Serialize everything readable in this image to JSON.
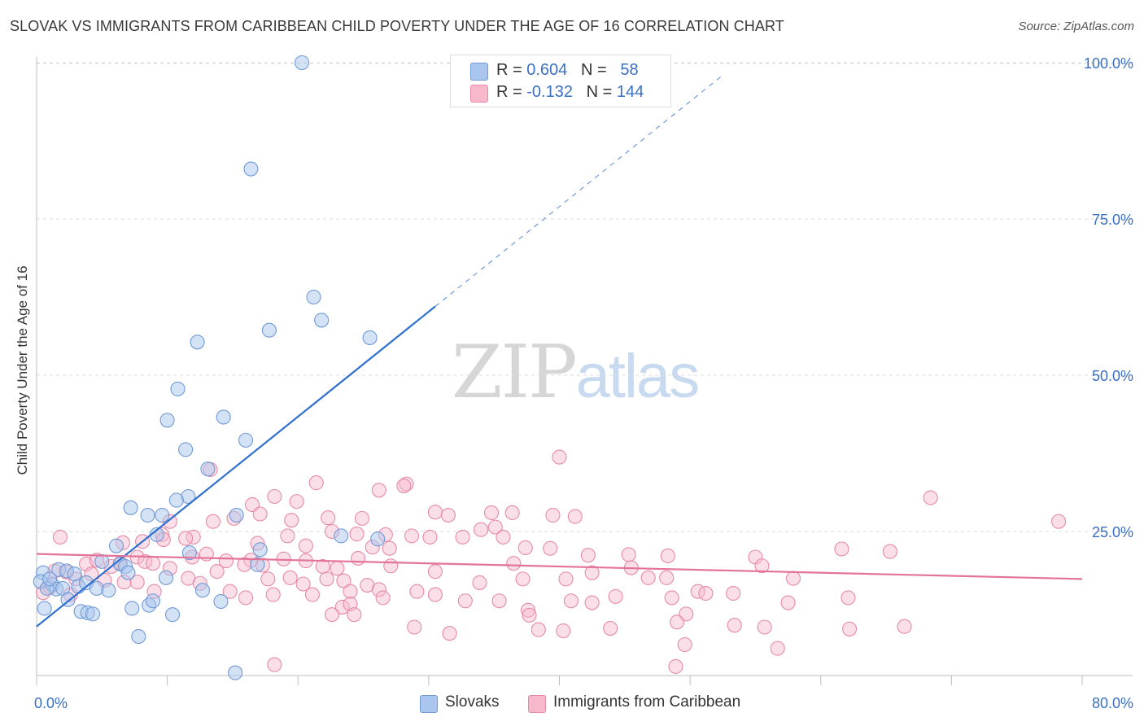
{
  "header": {
    "title": "SLOVAK VS IMMIGRANTS FROM CARIBBEAN CHILD POVERTY UNDER THE AGE OF 16 CORRELATION CHART",
    "source": "Source: ZipAtlas.com"
  },
  "watermark": {
    "zip": "ZIP",
    "atlas": "atlas"
  },
  "legend_top": {
    "rows": [
      {
        "r_label": "R = ",
        "r_value": "0.604",
        "n_label": "N = ",
        "n_value": "58",
        "color": "#aac6ee"
      },
      {
        "r_label": "R = ",
        "r_value": "-0.132",
        "n_label": "N = ",
        "n_value": "144",
        "color": "#f7b8cc"
      }
    ]
  },
  "chart_data": {
    "type": "scatter",
    "title": "SLOVAK VS IMMIGRANTS FROM CARIBBEAN CHILD POVERTY UNDER THE AGE OF 16 CORRELATION CHART",
    "xlabel": "",
    "ylabel": "Child Poverty Under the Age of 16",
    "xlim": [
      0,
      80
    ],
    "ylim": [
      0,
      105
    ],
    "x_tick_labels": [
      "0.0%",
      "80.0%"
    ],
    "y_ticks": [
      25,
      50,
      75,
      100
    ],
    "y_tick_labels": [
      "25.0%",
      "50.0%",
      "75.0%",
      "100.0%"
    ],
    "grid": true,
    "legend_position": "bottom",
    "colors": {
      "slovaks_fill": "#aac6ee",
      "slovaks_stroke": "#6f9ad6",
      "slovaks_line": "#2f6fce",
      "caribbean_fill": "#f7b8cc",
      "caribbean_stroke": "#e68aa8",
      "caribbean_line": "#e4739a",
      "axis_label": "#3a6fc4"
    },
    "series": [
      {
        "name": "Slovaks",
        "R": 0.604,
        "N": 58,
        "trend": {
          "x0": 0,
          "y0": 9.8,
          "x1": 30.5,
          "y1": 61,
          "dash_x1": 52.5,
          "dash_y1": 98
        },
        "points": [
          [
            20.3,
            100
          ],
          [
            16.4,
            83
          ],
          [
            21.2,
            62.5
          ],
          [
            21.8,
            58.8
          ],
          [
            17.8,
            57.2
          ],
          [
            25.5,
            56
          ],
          [
            12.3,
            55.3
          ],
          [
            10.8,
            47.8
          ],
          [
            10.0,
            42.8
          ],
          [
            14.3,
            43.3
          ],
          [
            16.0,
            39.6
          ],
          [
            11.4,
            38.1
          ],
          [
            13.1,
            35
          ],
          [
            11.6,
            30.6
          ],
          [
            10.7,
            30
          ],
          [
            7.2,
            28.8
          ],
          [
            8.5,
            27.6
          ],
          [
            9.6,
            27.6
          ],
          [
            15.3,
            27.6
          ],
          [
            23.3,
            24.3
          ],
          [
            26.1,
            23.8
          ],
          [
            9.2,
            24.5
          ],
          [
            6.1,
            22.7
          ],
          [
            6.4,
            19.8
          ],
          [
            5.0,
            20.2
          ],
          [
            6.8,
            19.4
          ],
          [
            7.0,
            18.4
          ],
          [
            1.7,
            18.9
          ],
          [
            2.3,
            18.7
          ],
          [
            2.9,
            18.2
          ],
          [
            0.5,
            18.4
          ],
          [
            0.3,
            17
          ],
          [
            1.2,
            16.5
          ],
          [
            1.5,
            15.8
          ],
          [
            2.0,
            15.9
          ],
          [
            3.2,
            16.2
          ],
          [
            3.8,
            16.8
          ],
          [
            4.6,
            15.9
          ],
          [
            5.5,
            15.6
          ],
          [
            0.8,
            15.9
          ],
          [
            1.0,
            17.4
          ],
          [
            0.6,
            12.7
          ],
          [
            2.4,
            14.1
          ],
          [
            3.4,
            12.2
          ],
          [
            3.9,
            12
          ],
          [
            4.3,
            11.8
          ],
          [
            7.3,
            12.7
          ],
          [
            8.6,
            13.2
          ],
          [
            8.9,
            13.9
          ],
          [
            9.9,
            17.6
          ],
          [
            11.7,
            21.6
          ],
          [
            12.7,
            15.6
          ],
          [
            14.1,
            13.8
          ],
          [
            16.9,
            19.7
          ],
          [
            17.1,
            22.1
          ],
          [
            10.4,
            11.7
          ],
          [
            7.8,
            8.2
          ],
          [
            15.2,
            2.4
          ]
        ]
      },
      {
        "name": "Immigrants from Caribbean",
        "R": -0.132,
        "N": 144,
        "trend": {
          "x0": 0,
          "y0": 21.4,
          "x1": 80,
          "y1": 17.4
        },
        "points": [
          [
            40.0,
            36.9
          ],
          [
            13.3,
            34.9
          ],
          [
            21.4,
            32.8
          ],
          [
            28.3,
            32.6
          ],
          [
            28.1,
            32.3
          ],
          [
            26.2,
            31.6
          ],
          [
            18.2,
            30.6
          ],
          [
            19.9,
            29.8
          ],
          [
            16.5,
            29.3
          ],
          [
            68.4,
            30.4
          ],
          [
            30.5,
            28.1
          ],
          [
            31.5,
            27.6
          ],
          [
            34.8,
            28
          ],
          [
            36.4,
            28
          ],
          [
            39.5,
            27.6
          ],
          [
            41.2,
            27.4
          ],
          [
            15.1,
            27.1
          ],
          [
            17.1,
            27.8
          ],
          [
            22.3,
            27.2
          ],
          [
            19.5,
            26.8
          ],
          [
            24.9,
            27.1
          ],
          [
            10.2,
            26.6
          ],
          [
            13.5,
            26.6
          ],
          [
            35.1,
            25.7
          ],
          [
            1.8,
            24.1
          ],
          [
            9.6,
            24.5
          ],
          [
            12.0,
            24.1
          ],
          [
            19.2,
            24.3
          ],
          [
            24.5,
            24.6
          ],
          [
            26.7,
            24.5
          ],
          [
            28.7,
            24.3
          ],
          [
            30.1,
            24.1
          ],
          [
            32.6,
            24.1
          ],
          [
            34.0,
            25.3
          ],
          [
            35.7,
            24.1
          ],
          [
            22.6,
            25
          ],
          [
            8.1,
            23.4
          ],
          [
            6.6,
            23.2
          ],
          [
            9.7,
            23.7
          ],
          [
            11.4,
            23.9
          ],
          [
            16.9,
            23.1
          ],
          [
            20.6,
            22.7
          ],
          [
            25.7,
            22.5
          ],
          [
            27.0,
            22.3
          ],
          [
            37.4,
            22.4
          ],
          [
            39.3,
            22.3
          ],
          [
            42.2,
            21.2
          ],
          [
            45.3,
            21.3
          ],
          [
            48.3,
            21.1
          ],
          [
            55.0,
            20.9
          ],
          [
            61.6,
            22.2
          ],
          [
            65.3,
            21.8
          ],
          [
            78.2,
            26.6
          ],
          [
            3.8,
            19.8
          ],
          [
            4.6,
            20.4
          ],
          [
            5.7,
            19.4
          ],
          [
            6.4,
            19.9
          ],
          [
            7.7,
            20.9
          ],
          [
            8.3,
            20.2
          ],
          [
            8.9,
            19.9
          ],
          [
            10.2,
            19.1
          ],
          [
            11.9,
            20.9
          ],
          [
            13.0,
            21.4
          ],
          [
            14.5,
            20.3
          ],
          [
            16.4,
            20.4
          ],
          [
            17.3,
            19.6
          ],
          [
            18.9,
            20.6
          ],
          [
            20.6,
            20.3
          ],
          [
            21.9,
            19.4
          ],
          [
            23.0,
            19.1
          ],
          [
            24.6,
            20.7
          ],
          [
            27.1,
            19.5
          ],
          [
            30.5,
            18.6
          ],
          [
            36.5,
            19.9
          ],
          [
            42.5,
            18.4
          ],
          [
            45.5,
            19.2
          ],
          [
            48.2,
            17.6
          ],
          [
            55.5,
            19.5
          ],
          [
            57.9,
            17.5
          ],
          [
            1.4,
            18.7
          ],
          [
            2.3,
            18.5
          ],
          [
            3.0,
            17.4
          ],
          [
            4.2,
            18.2
          ],
          [
            5.2,
            17.2
          ],
          [
            6.7,
            16.9
          ],
          [
            7.7,
            16.9
          ],
          [
            11.6,
            17.5
          ],
          [
            12.5,
            16.7
          ],
          [
            13.8,
            18.6
          ],
          [
            15.9,
            19.7
          ],
          [
            17.7,
            17.4
          ],
          [
            19.4,
            17.6
          ],
          [
            20.4,
            16.6
          ],
          [
            22.2,
            17.4
          ],
          [
            23.5,
            17.1
          ],
          [
            25.3,
            16.4
          ],
          [
            26.2,
            15.7
          ],
          [
            29.1,
            15.4
          ],
          [
            33.9,
            16.8
          ],
          [
            37.2,
            17.4
          ],
          [
            40.5,
            17.4
          ],
          [
            46.8,
            17.6
          ],
          [
            50.6,
            15.4
          ],
          [
            53.3,
            15.1
          ],
          [
            1.0,
            16.1
          ],
          [
            0.5,
            15.2
          ],
          [
            2.6,
            14.9
          ],
          [
            9.0,
            15.4
          ],
          [
            14.8,
            15.4
          ],
          [
            16.0,
            14.4
          ],
          [
            18.1,
            14.9
          ],
          [
            21.1,
            14.9
          ],
          [
            24.0,
            15.4
          ],
          [
            26.5,
            14.4
          ],
          [
            30.5,
            14.9
          ],
          [
            32.8,
            13.9
          ],
          [
            35.4,
            13.9
          ],
          [
            37.6,
            12.4
          ],
          [
            40.9,
            13.9
          ],
          [
            42.5,
            13.6
          ],
          [
            44.3,
            14.6
          ],
          [
            48.6,
            14.4
          ],
          [
            51.2,
            15.1
          ],
          [
            57.5,
            13.6
          ],
          [
            62.1,
            14.4
          ],
          [
            23.4,
            12.9
          ],
          [
            24.0,
            13.4
          ],
          [
            24.3,
            11.7
          ],
          [
            22.6,
            11.7
          ],
          [
            37.7,
            11.6
          ],
          [
            49.7,
            11.8
          ],
          [
            28.9,
            9.7
          ],
          [
            31.6,
            8.7
          ],
          [
            38.4,
            9.3
          ],
          [
            40.3,
            9.1
          ],
          [
            43.9,
            9.5
          ],
          [
            49.0,
            10.5
          ],
          [
            53.4,
            10
          ],
          [
            55.7,
            9.7
          ],
          [
            62.2,
            9.4
          ],
          [
            66.4,
            9.8
          ],
          [
            49.6,
            6.9
          ],
          [
            56.7,
            6.3
          ],
          [
            18.2,
            3.7
          ],
          [
            48.9,
            3.4
          ]
        ]
      }
    ]
  },
  "legend_bottom": {
    "items": [
      {
        "label": "Slovaks",
        "color": "#aac6ee"
      },
      {
        "label": "Immigrants from Caribbean",
        "color": "#f7b8cc"
      }
    ]
  }
}
